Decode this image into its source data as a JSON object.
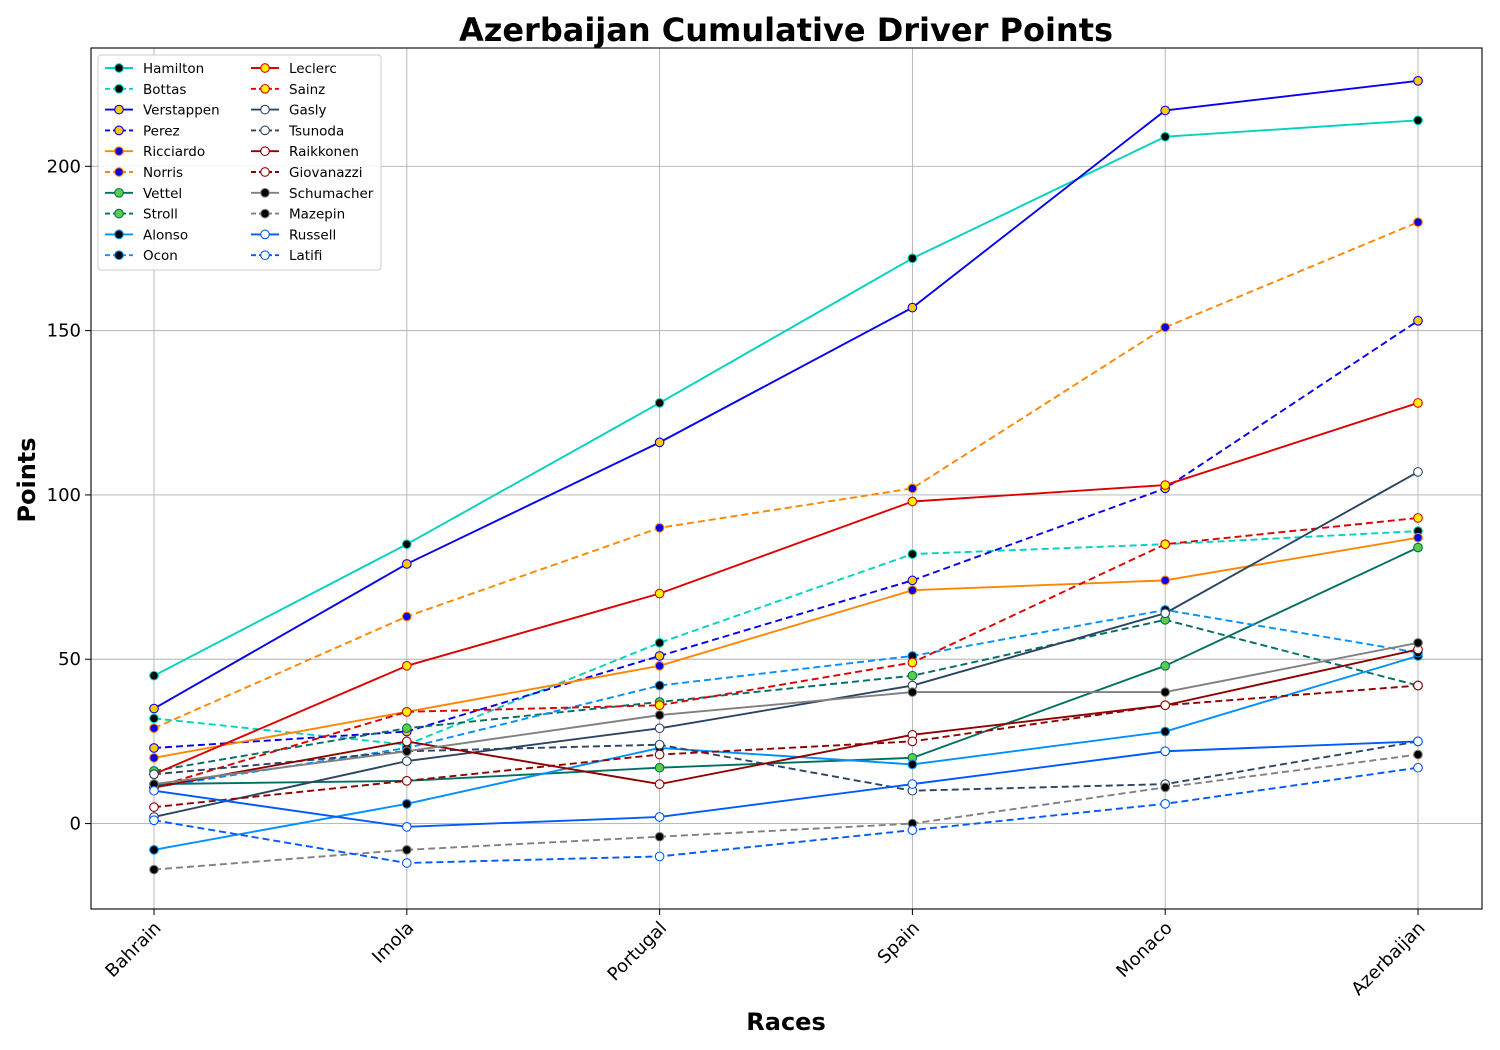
{
  "chart_data": {
    "type": "line",
    "title": "Azerbaijan Cumulative Driver Points",
    "xlabel": "Races",
    "ylabel": "Points",
    "categories": [
      "Bahrain",
      "Imola",
      "Portugal",
      "Spain",
      "Monaco",
      "Azerbaijan"
    ],
    "ylim": [
      -26,
      236
    ],
    "yticks": [
      0,
      50,
      100,
      150,
      200
    ],
    "grid": true,
    "legend_position": "top-left",
    "series": [
      {
        "name": "Hamilton",
        "values": [
          45,
          85,
          128,
          172,
          209,
          214
        ],
        "color": "#00d2be",
        "dashed": false,
        "marker_fill": "#000000",
        "marker_edge": "#00d2be"
      },
      {
        "name": "Bottas",
        "values": [
          32,
          24,
          55,
          82,
          85,
          89
        ],
        "color": "#00d2be",
        "dashed": true,
        "marker_fill": "#000000",
        "marker_edge": "#00d2be"
      },
      {
        "name": "Verstappen",
        "values": [
          35,
          79,
          116,
          157,
          217,
          226
        ],
        "color": "#0600ef",
        "dashed": false,
        "marker_fill": "#ffc906",
        "marker_edge": "#0600ef"
      },
      {
        "name": "Perez",
        "values": [
          23,
          28,
          51,
          74,
          102,
          153
        ],
        "color": "#0600ef",
        "dashed": true,
        "marker_fill": "#ffc906",
        "marker_edge": "#0600ef"
      },
      {
        "name": "Ricciardo",
        "values": [
          20,
          34,
          48,
          71,
          74,
          87
        ],
        "color": "#ff8700",
        "dashed": false,
        "marker_fill": "#0600ef",
        "marker_edge": "#ff8700"
      },
      {
        "name": "Norris",
        "values": [
          29,
          63,
          90,
          102,
          151,
          183
        ],
        "color": "#ff8700",
        "dashed": true,
        "marker_fill": "#0600ef",
        "marker_edge": "#ff8700"
      },
      {
        "name": "Vettel",
        "values": [
          12,
          13,
          17,
          20,
          48,
          84
        ],
        "color": "#006f62",
        "dashed": false,
        "marker_fill": "#5bcf43",
        "marker_edge": "#006f62"
      },
      {
        "name": "Stroll",
        "values": [
          16,
          29,
          37,
          45,
          62,
          42
        ],
        "color": "#006f62",
        "dashed": true,
        "marker_fill": "#5bcf43",
        "marker_edge": "#006f62"
      },
      {
        "name": "Alonso",
        "values": [
          -8,
          6,
          23,
          18,
          28,
          51
        ],
        "color": "#0090ff",
        "dashed": false,
        "marker_fill": "#000000",
        "marker_edge": "#0090ff"
      },
      {
        "name": "Ocon",
        "values": [
          11,
          23,
          42,
          51,
          65,
          52
        ],
        "color": "#0090ff",
        "dashed": true,
        "marker_fill": "#000000",
        "marker_edge": "#0090ff"
      },
      {
        "name": "Leclerc",
        "values": [
          15,
          48,
          70,
          98,
          103,
          128
        ],
        "color": "#dc0000",
        "dashed": false,
        "marker_fill": "#fff200",
        "marker_edge": "#dc0000"
      },
      {
        "name": "Sainz",
        "values": [
          11,
          34,
          36,
          49,
          85,
          93
        ],
        "color": "#dc0000",
        "dashed": true,
        "marker_fill": "#fff200",
        "marker_edge": "#dc0000"
      },
      {
        "name": "Gasly",
        "values": [
          2,
          19,
          29,
          42,
          64,
          107
        ],
        "color": "#2b4562",
        "dashed": false,
        "marker_fill": "#ffffff",
        "marker_edge": "#2b4562"
      },
      {
        "name": "Tsunoda",
        "values": [
          15,
          22,
          24,
          10,
          12,
          25
        ],
        "color": "#2b4562",
        "dashed": true,
        "marker_fill": "#ffffff",
        "marker_edge": "#2b4562"
      },
      {
        "name": "Raikkonen",
        "values": [
          11,
          25,
          12,
          27,
          36,
          53
        ],
        "color": "#900000",
        "dashed": false,
        "marker_fill": "#ffffff",
        "marker_edge": "#900000"
      },
      {
        "name": "Giovanazzi",
        "values": [
          5,
          13,
          21,
          25,
          36,
          42
        ],
        "color": "#900000",
        "dashed": true,
        "marker_fill": "#ffffff",
        "marker_edge": "#900000"
      },
      {
        "name": "Schumacher",
        "values": [
          12,
          22,
          33,
          40,
          40,
          55
        ],
        "color": "#808080",
        "dashed": false,
        "marker_fill": "#000000",
        "marker_edge": "#808080"
      },
      {
        "name": "Mazepin",
        "values": [
          -14,
          -8,
          -4,
          0,
          11,
          21
        ],
        "color": "#808080",
        "dashed": true,
        "marker_fill": "#000000",
        "marker_edge": "#808080"
      },
      {
        "name": "Russell",
        "values": [
          10,
          -1,
          2,
          12,
          22,
          25
        ],
        "color": "#005aff",
        "dashed": false,
        "marker_fill": "#ffffff",
        "marker_edge": "#005aff"
      },
      {
        "name": "Latifi",
        "values": [
          1,
          -12,
          -10,
          -2,
          6,
          17
        ],
        "color": "#005aff",
        "dashed": true,
        "marker_fill": "#ffffff",
        "marker_edge": "#005aff"
      }
    ]
  }
}
